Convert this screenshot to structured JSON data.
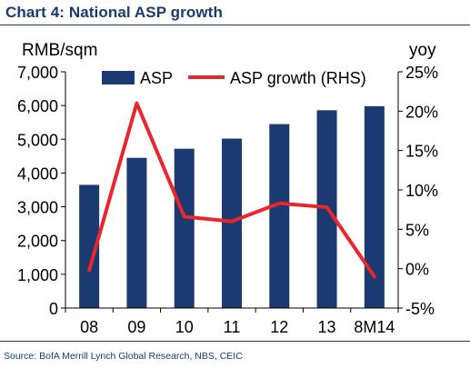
{
  "title": "Chart 4: National ASP growth",
  "source": "Source: BofA Merrill Lynch Global Research, NBS, CEIC",
  "chart_data": {
    "type": "bar",
    "categories": [
      "08",
      "09",
      "10",
      "11",
      "12",
      "13",
      "8M14"
    ],
    "series": [
      {
        "name": "ASP",
        "type": "bar",
        "axis": "left",
        "color": "#1b3a72",
        "values": [
          3650,
          4450,
          4720,
          5020,
          5450,
          5860,
          5980
        ]
      },
      {
        "name": "ASP growth (RHS)",
        "type": "line",
        "axis": "right",
        "color": "#e8262b",
        "values": [
          -0.2,
          21.0,
          6.6,
          6.0,
          8.3,
          7.8,
          -1.0
        ]
      }
    ],
    "ylabel": "RMB/sqm",
    "y2label": "yoy",
    "ylim": [
      0,
      7000
    ],
    "y2lim": [
      -5,
      25
    ],
    "yticks": [
      "0",
      "1,000",
      "2,000",
      "3,000",
      "4,000",
      "5,000",
      "6,000",
      "7,000"
    ],
    "y2ticks": [
      "-5%",
      "0%",
      "5%",
      "10%",
      "15%",
      "20%",
      "25%"
    ],
    "legend_position": "top",
    "grid": false
  }
}
